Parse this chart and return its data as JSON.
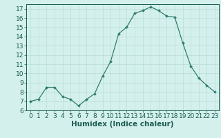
{
  "x": [
    0,
    1,
    2,
    3,
    4,
    5,
    6,
    7,
    8,
    9,
    10,
    11,
    12,
    13,
    14,
    15,
    16,
    17,
    18,
    19,
    20,
    21,
    22,
    23
  ],
  "y": [
    7.0,
    7.2,
    8.5,
    8.5,
    7.5,
    7.2,
    6.5,
    7.2,
    7.8,
    9.7,
    11.3,
    14.3,
    15.0,
    16.5,
    16.8,
    17.2,
    16.8,
    16.2,
    16.1,
    13.3,
    10.8,
    9.5,
    8.7,
    8.0
  ],
  "xlim": [
    -0.5,
    23.5
  ],
  "ylim": [
    6,
    17.5
  ],
  "yticks": [
    6,
    7,
    8,
    9,
    10,
    11,
    12,
    13,
    14,
    15,
    16,
    17
  ],
  "xticks": [
    0,
    1,
    2,
    3,
    4,
    5,
    6,
    7,
    8,
    9,
    10,
    11,
    12,
    13,
    14,
    15,
    16,
    17,
    18,
    19,
    20,
    21,
    22,
    23
  ],
  "xlabel": "Humidex (Indice chaleur)",
  "line_color": "#2e7d6e",
  "marker": "D",
  "marker_size": 2.0,
  "bg_color": "#d4f0ec",
  "grid_color": "#b8ddd8",
  "label_color": "#1a5c52",
  "tick_fontsize": 6.5,
  "xlabel_fontsize": 7.5
}
